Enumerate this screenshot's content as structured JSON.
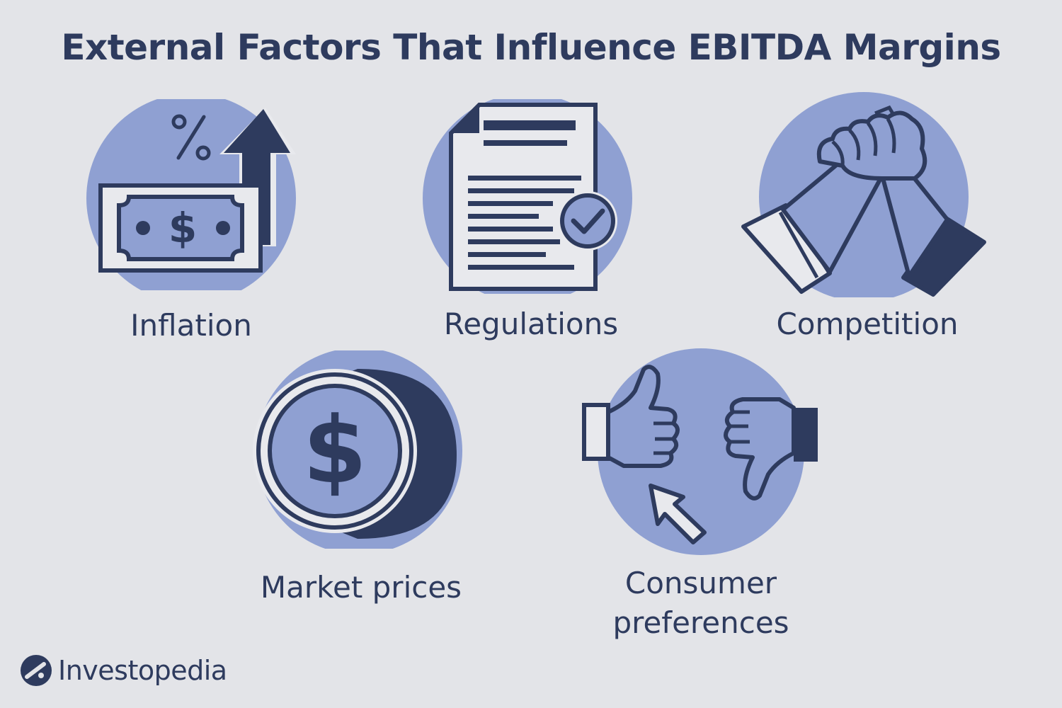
{
  "title": "External Factors That Influence EBITDA Margins",
  "factors": [
    {
      "label": "Inflation",
      "icon": "money-arrow-up-icon"
    },
    {
      "label": "Regulations",
      "icon": "document-check-icon"
    },
    {
      "label": "Competition",
      "icon": "arm-wrestling-icon"
    },
    {
      "label": "Market prices",
      "icon": "coin-dollar-icon"
    },
    {
      "label": "Consumer preferences",
      "icon": "thumbs-cursor-icon"
    }
  ],
  "brand": {
    "name": "Investopedia",
    "logo_icon": "investopedia-logo-icon"
  },
  "colors": {
    "background": "#e3e4e8",
    "circle": "#8fa0d2",
    "ink": "#2e3b5e",
    "paper": "#e8e9ed"
  }
}
